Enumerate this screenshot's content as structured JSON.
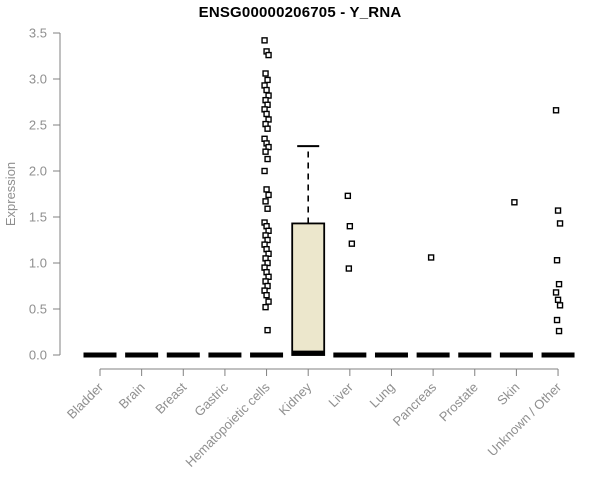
{
  "title": "ENSG00000206705 - Y_RNA",
  "chart_data": {
    "type": "boxplot",
    "title": "ENSG00000206705 - Y_RNA",
    "ylabel": "Expression",
    "xlabel": "",
    "ylim": [
      0.0,
      3.5
    ],
    "ytick_labels": [
      "0.0",
      "0.5",
      "1.0",
      "1.5",
      "2.0",
      "2.5",
      "3.0",
      "3.5"
    ],
    "grid": false,
    "legend": "none",
    "categories": [
      "Bladder",
      "Brain",
      "Breast",
      "Gastric",
      "Hematopoietic cells",
      "Kidney",
      "Liver",
      "Lung",
      "Pancreas",
      "Prostate",
      "Skin",
      "Unknown / Other"
    ],
    "boxes": [
      {
        "category": "Bladder",
        "q1": 0,
        "median": 0,
        "q3": 0,
        "whisker_low": 0,
        "whisker_high": 0,
        "outliers": []
      },
      {
        "category": "Brain",
        "q1": 0,
        "median": 0,
        "q3": 0,
        "whisker_low": 0,
        "whisker_high": 0,
        "outliers": []
      },
      {
        "category": "Breast",
        "q1": 0,
        "median": 0,
        "q3": 0,
        "whisker_low": 0,
        "whisker_high": 0,
        "outliers": []
      },
      {
        "category": "Gastric",
        "q1": 0,
        "median": 0,
        "q3": 0,
        "whisker_low": 0,
        "whisker_high": 0,
        "outliers": []
      },
      {
        "category": "Hematopoietic cells",
        "q1": 0,
        "median": 0,
        "q3": 0,
        "whisker_low": 0,
        "whisker_high": 0,
        "outliers": [
          3.42,
          3.3,
          3.26,
          3.06,
          2.99,
          2.93,
          2.88,
          2.82,
          2.77,
          2.72,
          2.67,
          2.62,
          2.56,
          2.51,
          2.46,
          2.35,
          2.3,
          2.26,
          2.21,
          2.13,
          2.0,
          1.8,
          1.74,
          1.67,
          1.59,
          1.44,
          1.4,
          1.35,
          1.3,
          1.25,
          1.2,
          1.15,
          1.1,
          1.05,
          1.0,
          0.95,
          0.9,
          0.85,
          0.8,
          0.75,
          0.7,
          0.65,
          0.58,
          0.52,
          0.27
        ]
      },
      {
        "category": "Kidney",
        "q1": 0,
        "median": 0.02,
        "q3": 1.43,
        "whisker_low": 0,
        "whisker_high": 2.27,
        "outliers": []
      },
      {
        "category": "Liver",
        "q1": 0,
        "median": 0,
        "q3": 0,
        "whisker_low": 0,
        "whisker_high": 0,
        "outliers": [
          1.73,
          1.4,
          1.21,
          0.94
        ]
      },
      {
        "category": "Lung",
        "q1": 0,
        "median": 0,
        "q3": 0,
        "whisker_low": 0,
        "whisker_high": 0,
        "outliers": []
      },
      {
        "category": "Pancreas",
        "q1": 0,
        "median": 0,
        "q3": 0,
        "whisker_low": 0,
        "whisker_high": 0,
        "outliers": [
          1.06
        ]
      },
      {
        "category": "Prostate",
        "q1": 0,
        "median": 0,
        "q3": 0,
        "whisker_low": 0,
        "whisker_high": 0,
        "outliers": []
      },
      {
        "category": "Skin",
        "q1": 0,
        "median": 0,
        "q3": 0,
        "whisker_low": 0,
        "whisker_high": 0,
        "outliers": [
          1.66
        ]
      },
      {
        "category": "Unknown / Other",
        "q1": 0,
        "median": 0,
        "q3": 0,
        "whisker_low": 0,
        "whisker_high": 0,
        "outliers": [
          2.66,
          1.57,
          1.43,
          1.03,
          0.77,
          0.68,
          0.6,
          0.54,
          0.38,
          0.26
        ]
      }
    ],
    "colors": {
      "box_fill": "#ece7cc",
      "box_stroke": "#000000",
      "median": "#000000",
      "whisker": "#000000",
      "outlier_stroke": "#000000",
      "outlier_fill": "#ffffff",
      "axis": "#808080",
      "tick_label": "#8f8f8f",
      "title": "#000000"
    }
  }
}
